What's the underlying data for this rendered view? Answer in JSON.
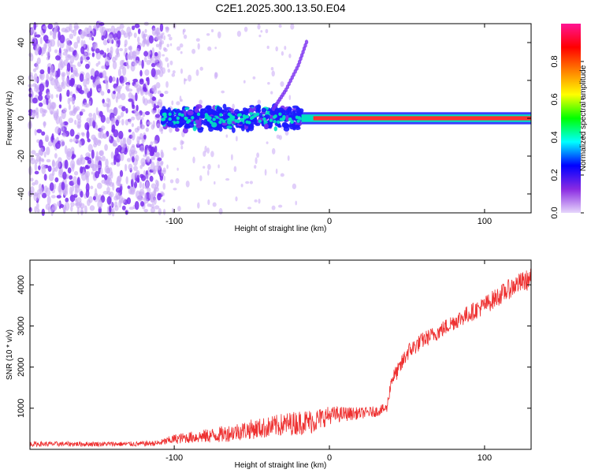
{
  "title": "C2E1.2025.300.13.50.E04",
  "chart_data": [
    {
      "type": "heatmap",
      "title": "C2E1.2025.300.13.50.E04",
      "xlabel": "Height of straight line (km)",
      "ylabel": "Frequency (Hz)",
      "xlim": [
        -193,
        130
      ],
      "ylim": [
        -50,
        50
      ],
      "xticks": [
        -100,
        0,
        100
      ],
      "yticks": [
        -40,
        -20,
        0,
        20,
        40
      ],
      "colorbar": {
        "label": "Normalized spectral amplitude",
        "range": [
          0,
          1
        ],
        "ticks": [
          0.0,
          0.2,
          0.4,
          0.6,
          0.8
        ],
        "colors": [
          "#e6d6fb",
          "#8a2be2",
          "#0000ff",
          "#00ffff",
          "#00ff00",
          "#ffff00",
          "#ff8000",
          "#ff0000",
          "#ff1493"
        ]
      },
      "colors": {
        "noise": "#7b2ff0",
        "noise_light": "#c8a8f5",
        "band": "#1a1aff",
        "band_mid": "#00e0c0",
        "band_core": "#ff3030"
      },
      "features": [
        {
          "name": "broadband noise",
          "x_range": [
            -193,
            -108
          ],
          "y_range": [
            -50,
            50
          ],
          "amplitude": 0.2
        },
        {
          "name": "sparse scatter",
          "x_range": [
            -108,
            -20
          ],
          "y_range": [
            -50,
            50
          ],
          "amplitude": 0.05
        },
        {
          "name": "spreading band",
          "x_range": [
            -108,
            -18
          ],
          "center_hz": 0,
          "half_width_hz": 5,
          "amplitude": 0.4
        },
        {
          "name": "rising tone",
          "points": [
            [
              -36,
              5
            ],
            [
              -28,
              15
            ],
            [
              -20,
              28
            ],
            [
              -14,
              42
            ]
          ],
          "amplitude": 0.2
        },
        {
          "name": "narrow band",
          "x_range": [
            -18,
            130
          ],
          "center_hz": 0,
          "half_width_hz": 2,
          "amplitude": 0.85
        }
      ]
    },
    {
      "type": "line",
      "xlabel": "Height of straight line (km)",
      "ylabel": "SNR (10 * v/v)",
      "xlim": [
        -193,
        130
      ],
      "ylim": [
        0,
        4600
      ],
      "xticks": [
        -100,
        0,
        100
      ],
      "yticks": [
        1000,
        2000,
        3000,
        4000
      ],
      "color": "#ee3030",
      "series": [
        {
          "name": "SNR",
          "x": [
            -193,
            -150,
            -125,
            -110,
            -100,
            -90,
            -80,
            -70,
            -60,
            -50,
            -40,
            -30,
            -20,
            -10,
            0,
            10,
            20,
            30,
            37,
            40,
            45,
            50,
            60,
            70,
            80,
            90,
            100,
            110,
            120,
            130
          ],
          "value": [
            130,
            130,
            130,
            150,
            250,
            290,
            320,
            360,
            430,
            490,
            530,
            600,
            650,
            690,
            830,
            860,
            880,
            920,
            1000,
            1700,
            1950,
            2350,
            2650,
            2850,
            3100,
            3300,
            3500,
            3750,
            4000,
            4150
          ],
          "spread": [
            60,
            60,
            60,
            70,
            120,
            140,
            170,
            200,
            220,
            240,
            260,
            280,
            300,
            300,
            220,
            180,
            140,
            130,
            120,
            180,
            200,
            220,
            200,
            200,
            210,
            220,
            230,
            240,
            250,
            260
          ]
        }
      ]
    }
  ]
}
